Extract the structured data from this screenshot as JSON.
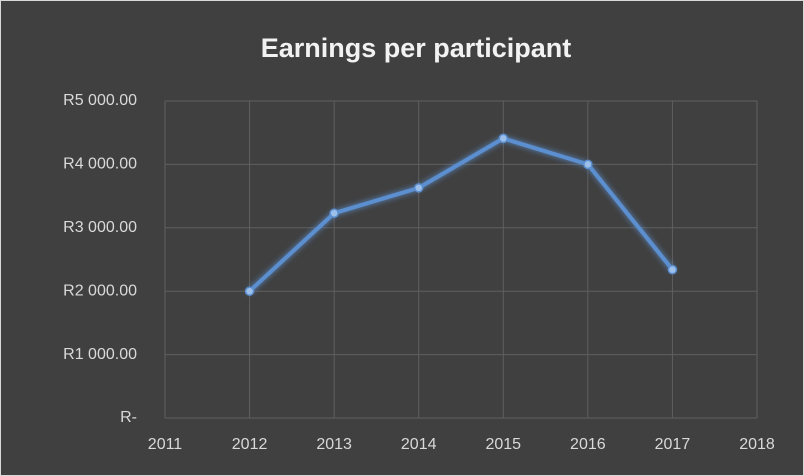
{
  "chart_data": {
    "type": "line",
    "title": "Earnings per participant",
    "x": [
      2012,
      2013,
      2014,
      2015,
      2016,
      2017
    ],
    "series": [
      {
        "name": "Earnings per participant",
        "color": "#5b8fd0",
        "values": [
          2000,
          3230,
          3630,
          4410,
          4000,
          2340
        ]
      }
    ],
    "xlim": [
      2011,
      2018
    ],
    "xticks": [
      2011,
      2012,
      2013,
      2014,
      2015,
      2016,
      2017,
      2018
    ],
    "ylim": [
      0,
      5000
    ],
    "yticks": [
      {
        "value": 0,
        "label": "R-"
      },
      {
        "value": 1000,
        "label": "R1 000.00"
      },
      {
        "value": 2000,
        "label": "R2 000.00"
      },
      {
        "value": 3000,
        "label": "R3 000.00"
      },
      {
        "value": 4000,
        "label": "R4 000.00"
      },
      {
        "value": 5000,
        "label": "R5 000.00"
      }
    ],
    "grid": true
  }
}
